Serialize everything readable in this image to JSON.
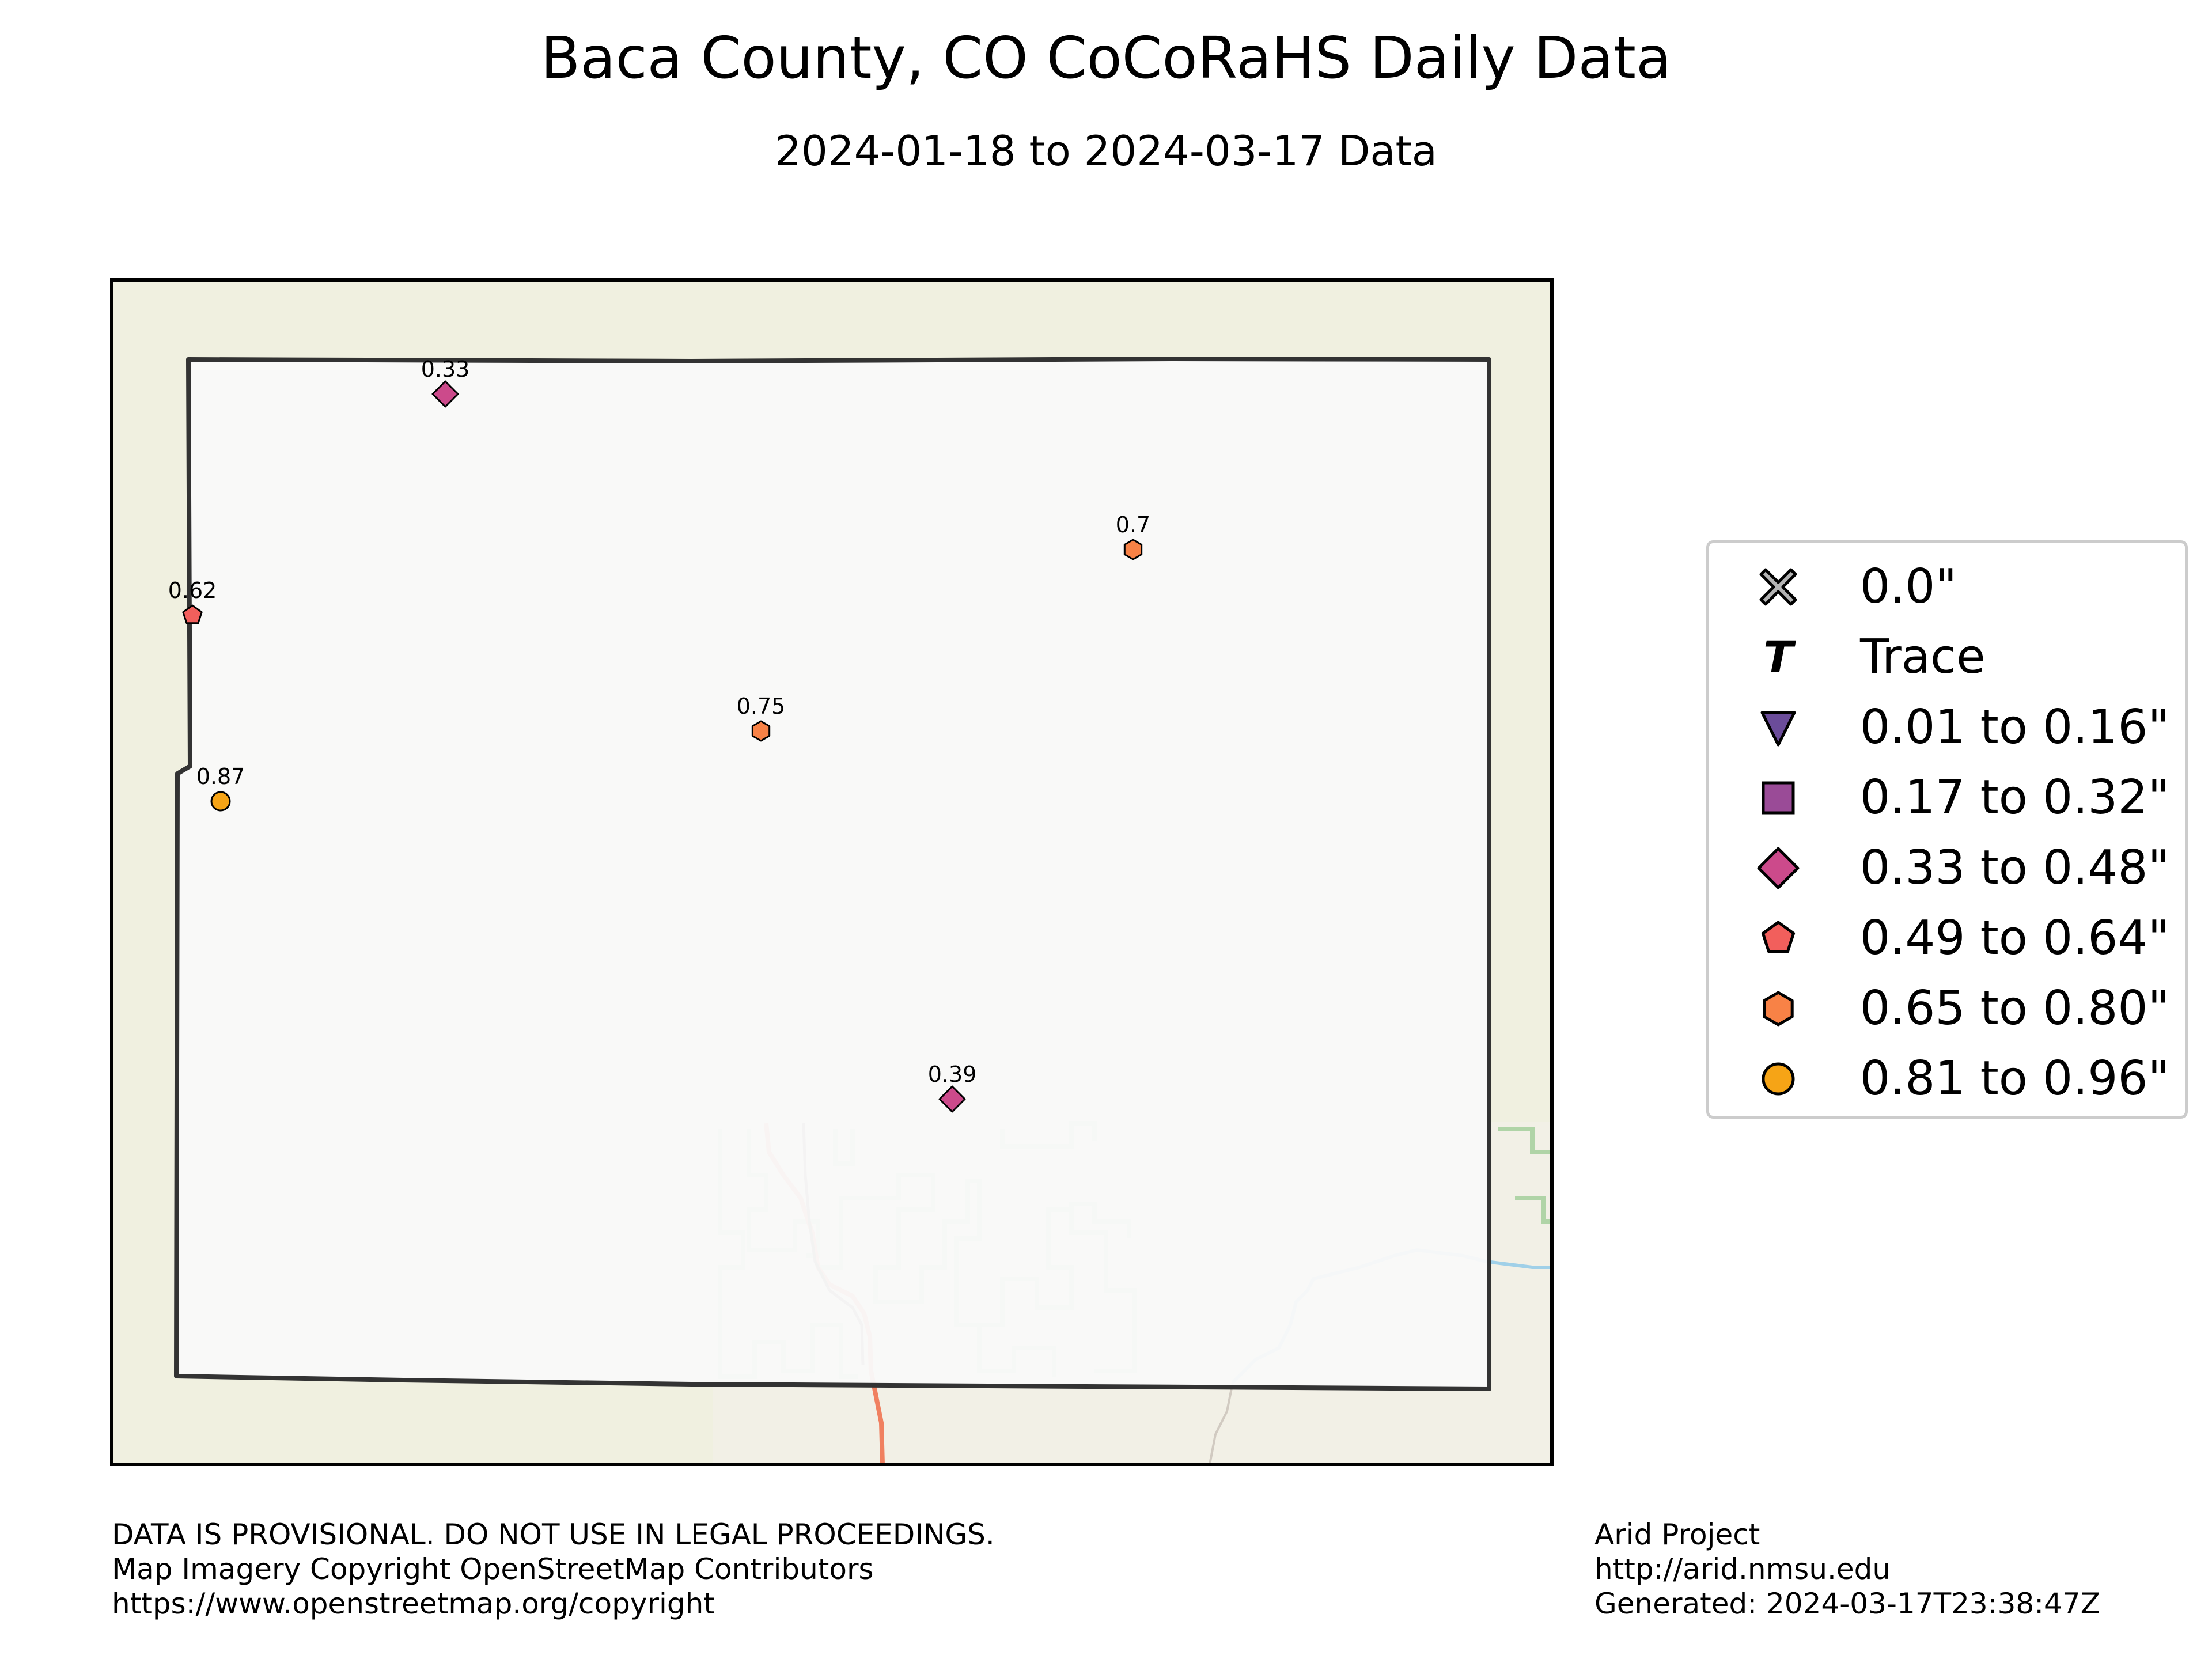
{
  "title": "Baca County, CO CoCoRaHS Daily Data",
  "subtitle": "2024-01-18 to 2024-03-17 Data",
  "colors": {
    "background": "#f0f0e0",
    "county_fill": "#f9f9f9",
    "county_border": "#333333",
    "road": "#f08060",
    "river": "#a0d0e8",
    "park": "#a8d0a0"
  },
  "stations": [
    {
      "label": "0.33",
      "value": 0.33,
      "marker": "diamond",
      "color": "#cc4a8b"
    },
    {
      "label": "0.7",
      "value": 0.7,
      "marker": "hexagon",
      "color": "#f88246"
    },
    {
      "label": "0.62",
      "value": 0.62,
      "marker": "pentagon",
      "color": "#f25f5c"
    },
    {
      "label": "0.75",
      "value": 0.75,
      "marker": "hexagon",
      "color": "#f88246"
    },
    {
      "label": "0.87",
      "value": 0.87,
      "marker": "circle",
      "color": "#f6a416"
    },
    {
      "label": "0.39",
      "value": 0.39,
      "marker": "diamond",
      "color": "#cc4a8b"
    }
  ],
  "legend": [
    {
      "label": "0.0\"",
      "marker": "x-icon",
      "color": "#b3b3b3"
    },
    {
      "label": "Trace",
      "marker": "t-icon",
      "color": "#000000"
    },
    {
      "label": "0.01 to 0.16\"",
      "marker": "triangle-down-icon",
      "color": "#6b4c9a"
    },
    {
      "label": "0.17 to 0.32\"",
      "marker": "square-icon",
      "color": "#9a4b97"
    },
    {
      "label": "0.33 to 0.48\"",
      "marker": "diamond-icon",
      "color": "#cc4a8b"
    },
    {
      "label": "0.49 to 0.64\"",
      "marker": "pentagon-icon",
      "color": "#f25f5c"
    },
    {
      "label": "0.65 to 0.80\"",
      "marker": "hexagon-icon",
      "color": "#f88246"
    },
    {
      "label": "0.81 to 0.96\"",
      "marker": "circle-icon",
      "color": "#f6a416"
    }
  ],
  "footer": {
    "left": [
      "DATA IS PROVISIONAL. DO NOT USE IN LEGAL PROCEEDINGS.",
      "Map Imagery Copyright OpenStreetMap Contributors",
      "https://www.openstreetmap.org/copyright"
    ],
    "right": [
      "Arid Project",
      "http://arid.nmsu.edu",
      "Generated: 2024-03-17T23:38:47Z"
    ]
  }
}
